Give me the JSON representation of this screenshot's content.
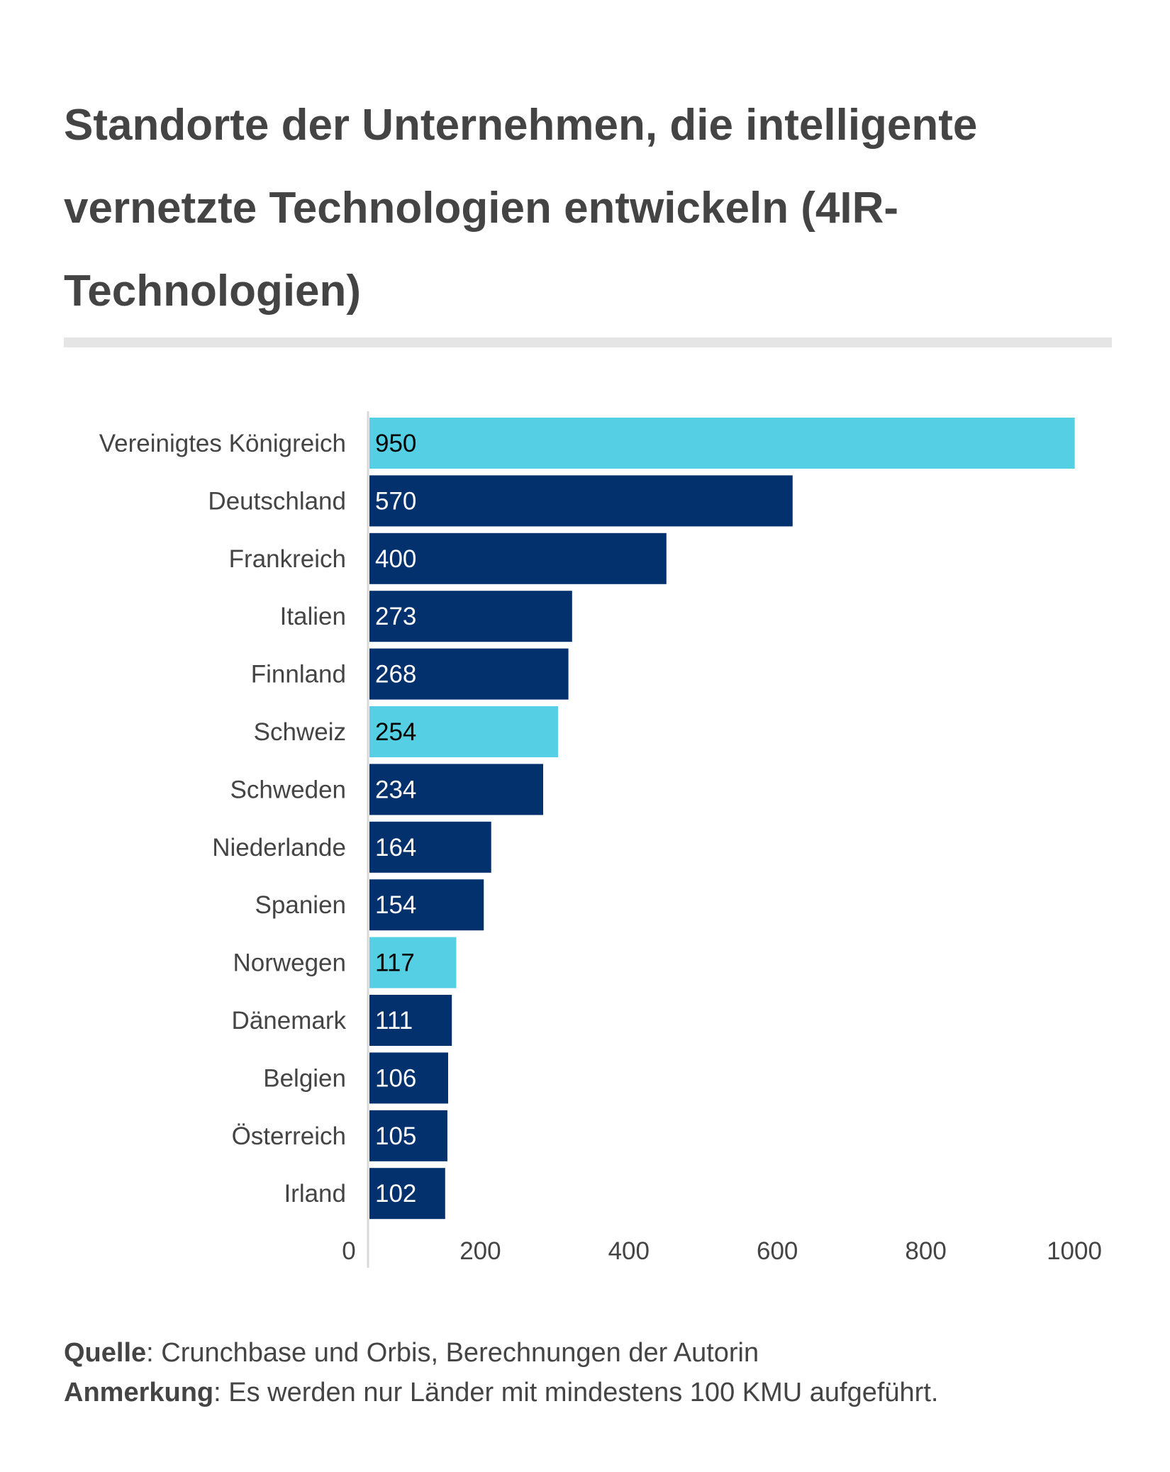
{
  "chart_data": {
    "type": "bar",
    "orientation": "horizontal",
    "title": "Standorte der Unternehmen, die intelligente vernetzte Technologien entwickeln (4IR-Technologien)",
    "categories": [
      "Vereinigtes Königreich",
      "Deutschland",
      "Frankreich",
      "Italien",
      "Finnland",
      "Schweiz",
      "Schweden",
      "Niederlande",
      "Spanien",
      "Norwegen",
      "Dänemark",
      "Belgien",
      "Österreich",
      "Irland"
    ],
    "values": [
      950,
      570,
      400,
      273,
      268,
      254,
      234,
      164,
      154,
      117,
      111,
      106,
      105,
      102
    ],
    "highlighted": [
      true,
      false,
      false,
      false,
      false,
      true,
      false,
      false,
      false,
      true,
      false,
      false,
      false,
      false
    ],
    "colors": {
      "default": "#03316e",
      "highlight": "#55cfe4",
      "label_on_default": "#ffffff",
      "label_on_highlight": "#000000",
      "axis": "#d9d9d9"
    },
    "xticks": [
      0,
      200,
      400,
      600,
      800,
      1000
    ],
    "xlim": [
      0,
      1000
    ],
    "grid": false,
    "legend": "none"
  },
  "footer": {
    "source_label": "Quelle",
    "source_text": ": Crunchbase und Orbis, Berechnungen der Autorin",
    "note_label": "Anmerkung",
    "note_text": ": Es werden nur Länder mit mindestens 100 KMU aufgeführt."
  }
}
